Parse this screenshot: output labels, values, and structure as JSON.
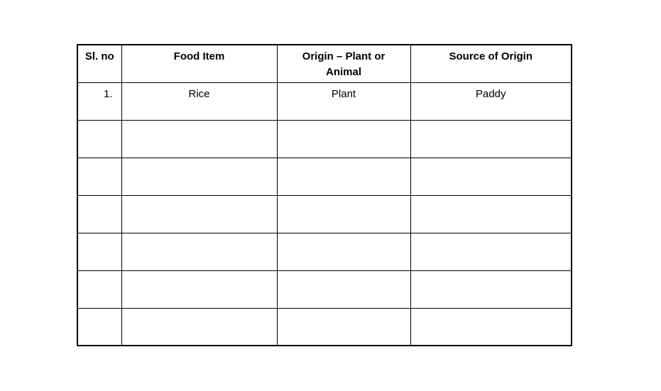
{
  "page": {
    "background_color": "#ffffff",
    "text_color": "#000000",
    "border_color": "#000000"
  },
  "table": {
    "name": "food-origin-table",
    "columns": [
      {
        "key": "sl_no",
        "label": "Sl. no"
      },
      {
        "key": "food_item",
        "label": "Food Item"
      },
      {
        "key": "origin",
        "label": "Origin – Plant or\nAnimal"
      },
      {
        "key": "source",
        "label": "Source of Origin"
      }
    ],
    "rows": [
      {
        "sl_no": "1.",
        "food_item": "Rice",
        "origin": "Plant",
        "source": "Paddy"
      },
      {
        "sl_no": "",
        "food_item": "",
        "origin": "",
        "source": ""
      },
      {
        "sl_no": "",
        "food_item": "",
        "origin": "",
        "source": ""
      },
      {
        "sl_no": "",
        "food_item": "",
        "origin": "",
        "source": ""
      },
      {
        "sl_no": "",
        "food_item": "",
        "origin": "",
        "source": ""
      },
      {
        "sl_no": "",
        "food_item": "",
        "origin": "",
        "source": ""
      },
      {
        "sl_no": "",
        "food_item": "",
        "origin": "",
        "source": ""
      }
    ]
  }
}
